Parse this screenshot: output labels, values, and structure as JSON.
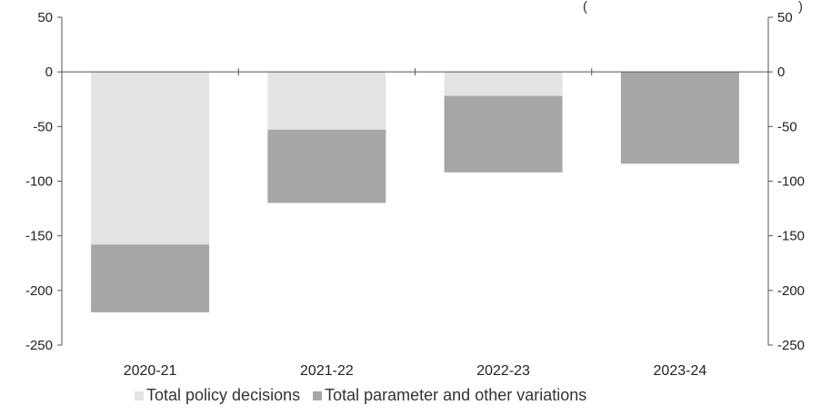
{
  "chart_data": {
    "type": "bar",
    "stacked": true,
    "categories": [
      "2020-21",
      "2021-22",
      "2022-23",
      "2023-24"
    ],
    "series": [
      {
        "name": "Total policy decisions",
        "color": "#e3e3e3",
        "values": [
          -158,
          -53,
          -22,
          0
        ]
      },
      {
        "name": "Total parameter and other variations",
        "color": "#a6a6a6",
        "values": [
          -62,
          -67,
          -70,
          -84
        ]
      }
    ],
    "ylim": [
      -250,
      50
    ],
    "yticks": [
      50,
      0,
      -50,
      -100,
      -150,
      -200,
      -250
    ],
    "y2ticks": [
      50,
      0,
      -50,
      -100,
      -150,
      -200,
      -250
    ],
    "legend": "bottom",
    "grid": false,
    "corner_marks": {
      "left": "(",
      "right": ")"
    }
  }
}
